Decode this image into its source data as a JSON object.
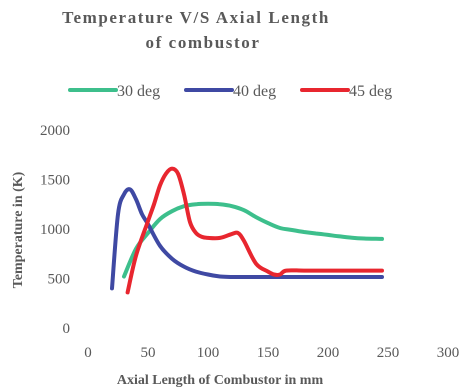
{
  "chart_data": {
    "type": "line",
    "title_lines": [
      "Temperature V/S  Axial Length",
      "of combustor"
    ],
    "xlabel": "Axial Length of Combustor in mm",
    "ylabel": "Temperature in (K)",
    "xlim": [
      0,
      300
    ],
    "ylim": [
      0,
      2000
    ],
    "xticks": [
      0,
      50,
      100,
      150,
      200,
      250,
      300
    ],
    "yticks": [
      0,
      500,
      1000,
      1500,
      2000
    ],
    "grid": "none",
    "legend_position": "top",
    "series": [
      {
        "name": "30 deg",
        "color": "#3dbf8c",
        "x": [
          30,
          40,
          50,
          60,
          70,
          80,
          90,
          100,
          110,
          120,
          130,
          140,
          150,
          160,
          170,
          180,
          190,
          200,
          210,
          220,
          230,
          245
        ],
        "y": [
          520,
          800,
          960,
          1100,
          1180,
          1230,
          1250,
          1255,
          1250,
          1230,
          1190,
          1120,
          1060,
          1010,
          990,
          970,
          955,
          940,
          925,
          912,
          904,
          900
        ]
      },
      {
        "name": "40 deg",
        "color": "#3f49a3",
        "x": [
          20,
          25,
          30,
          35,
          40,
          45,
          50,
          60,
          70,
          80,
          90,
          100,
          110,
          120,
          140,
          160,
          200,
          245
        ],
        "y": [
          400,
          1150,
          1350,
          1400,
          1300,
          1150,
          1050,
          830,
          700,
          620,
          570,
          540,
          520,
          515,
          515,
          515,
          515,
          515
        ]
      },
      {
        "name": "45 deg",
        "color": "#e8262f",
        "x": [
          33,
          40,
          50,
          55,
          60,
          65,
          70,
          75,
          80,
          85,
          90,
          95,
          100,
          110,
          120,
          125,
          130,
          140,
          150,
          155,
          160,
          165,
          180,
          200,
          245
        ],
        "y": [
          360,
          730,
          1080,
          1250,
          1440,
          1560,
          1610,
          1560,
          1350,
          1070,
          960,
          920,
          910,
          910,
          950,
          960,
          880,
          650,
          570,
          540,
          540,
          580,
          580,
          580,
          580
        ]
      }
    ]
  }
}
